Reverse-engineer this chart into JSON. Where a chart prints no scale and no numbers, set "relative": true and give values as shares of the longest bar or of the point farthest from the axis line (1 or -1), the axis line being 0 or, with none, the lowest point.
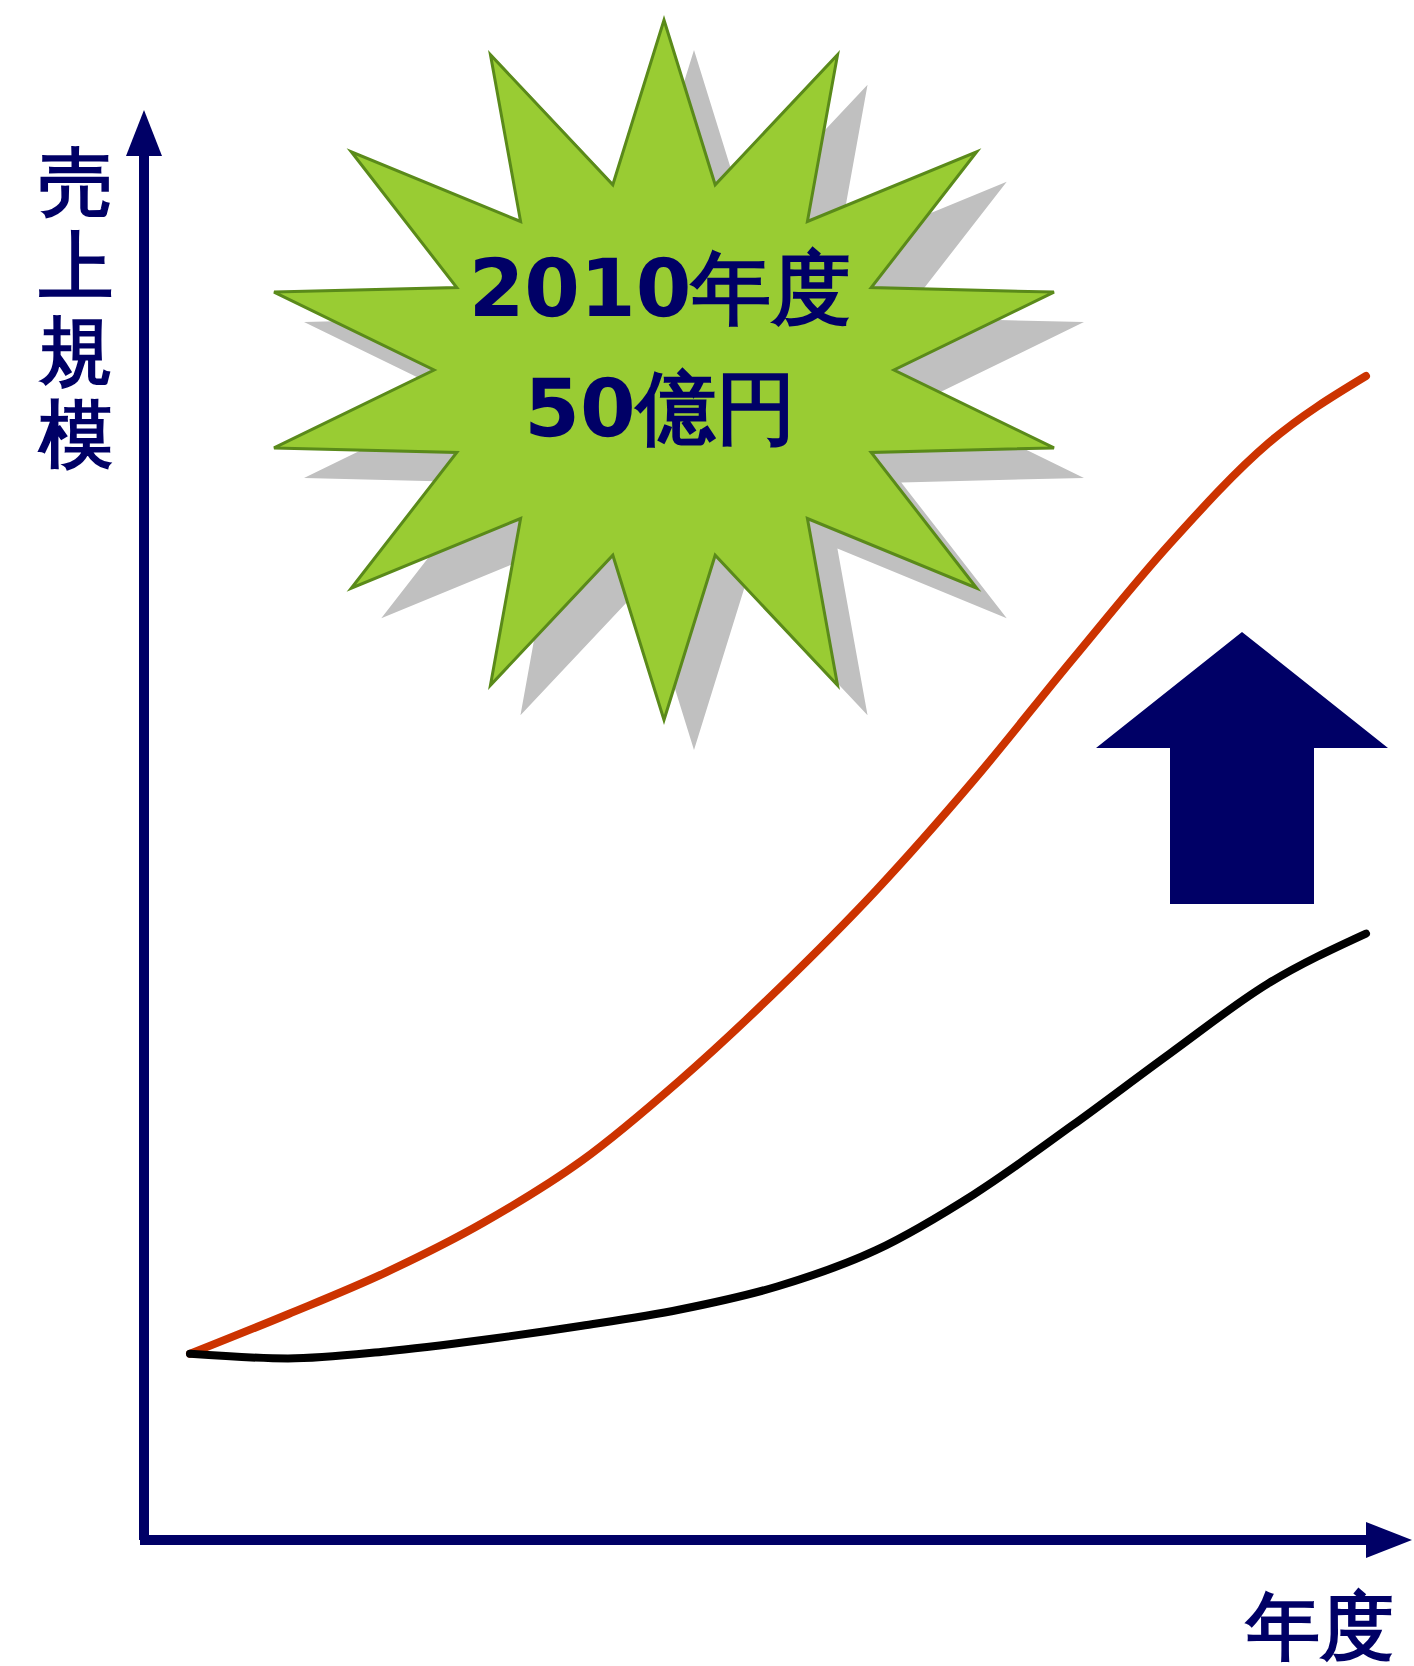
{
  "chart_data": {
    "type": "line",
    "relative": true,
    "xlabel": "年度",
    "ylabel": "売上規模",
    "annotations": [
      "2010年度\n50億円"
    ],
    "categories": [
      null,
      null,
      null,
      null,
      null,
      null,
      null,
      null,
      null,
      null,
      null,
      null,
      null
    ],
    "series": [
      {
        "color": "#cc3300",
        "values": [
          0.16,
          0.194,
          0.23,
          0.273,
          0.326,
          0.395,
          0.473,
          0.558,
          0.653,
          0.756,
          0.856,
          0.942,
          1
        ]
      },
      {
        "color": "#000000",
        "values": [
          0.16,
          0.156,
          0.162,
          0.172,
          0.184,
          0.198,
          0.218,
          0.249,
          0.297,
          0.356,
          0.418,
          0.478,
          0.521
        ]
      }
    ]
  }
}
